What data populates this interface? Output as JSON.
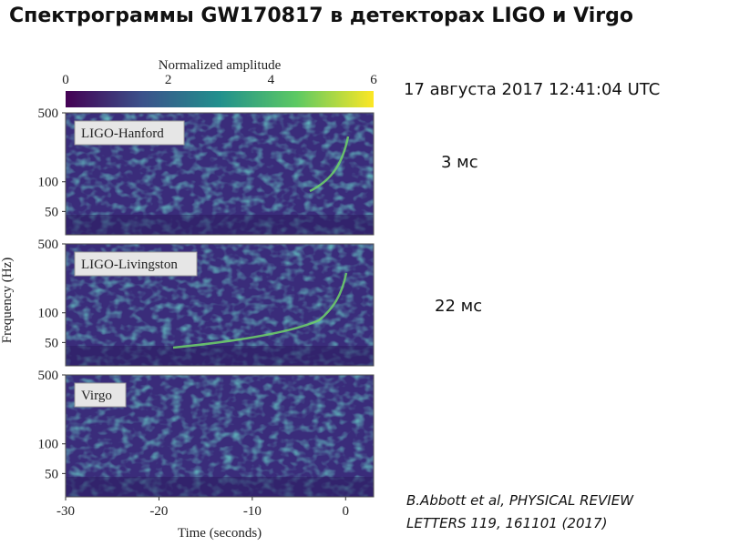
{
  "title": "Спектрограммы GW170817 в детекторах LIGO и Virgo",
  "figure": {
    "colorbar": {
      "label": "Normalized amplitude",
      "ticks": [
        0,
        2,
        4,
        6
      ],
      "lim": [
        0,
        6
      ]
    },
    "panels": [
      {
        "label": "LIGO-Hanford"
      },
      {
        "label": "LIGO-Livingston"
      },
      {
        "label": "Virgo"
      }
    ],
    "ylabel": "Frequency (Hz)",
    "yticks": [
      50,
      100,
      500
    ],
    "ylim": [
      29,
      500
    ],
    "ylog": true,
    "xlabel": "Time (seconds)",
    "xticks": [
      -30,
      -20,
      -10,
      0
    ],
    "xlim": [
      -30,
      3
    ]
  },
  "date": "17 августа 2017 12:41:04 UTC",
  "annotations": [
    "3 мс",
    "22 мс"
  ],
  "citation": "B.Abbott et al, PHYSICAL REVIEW LETTERS 119, 161101 (2017)"
}
